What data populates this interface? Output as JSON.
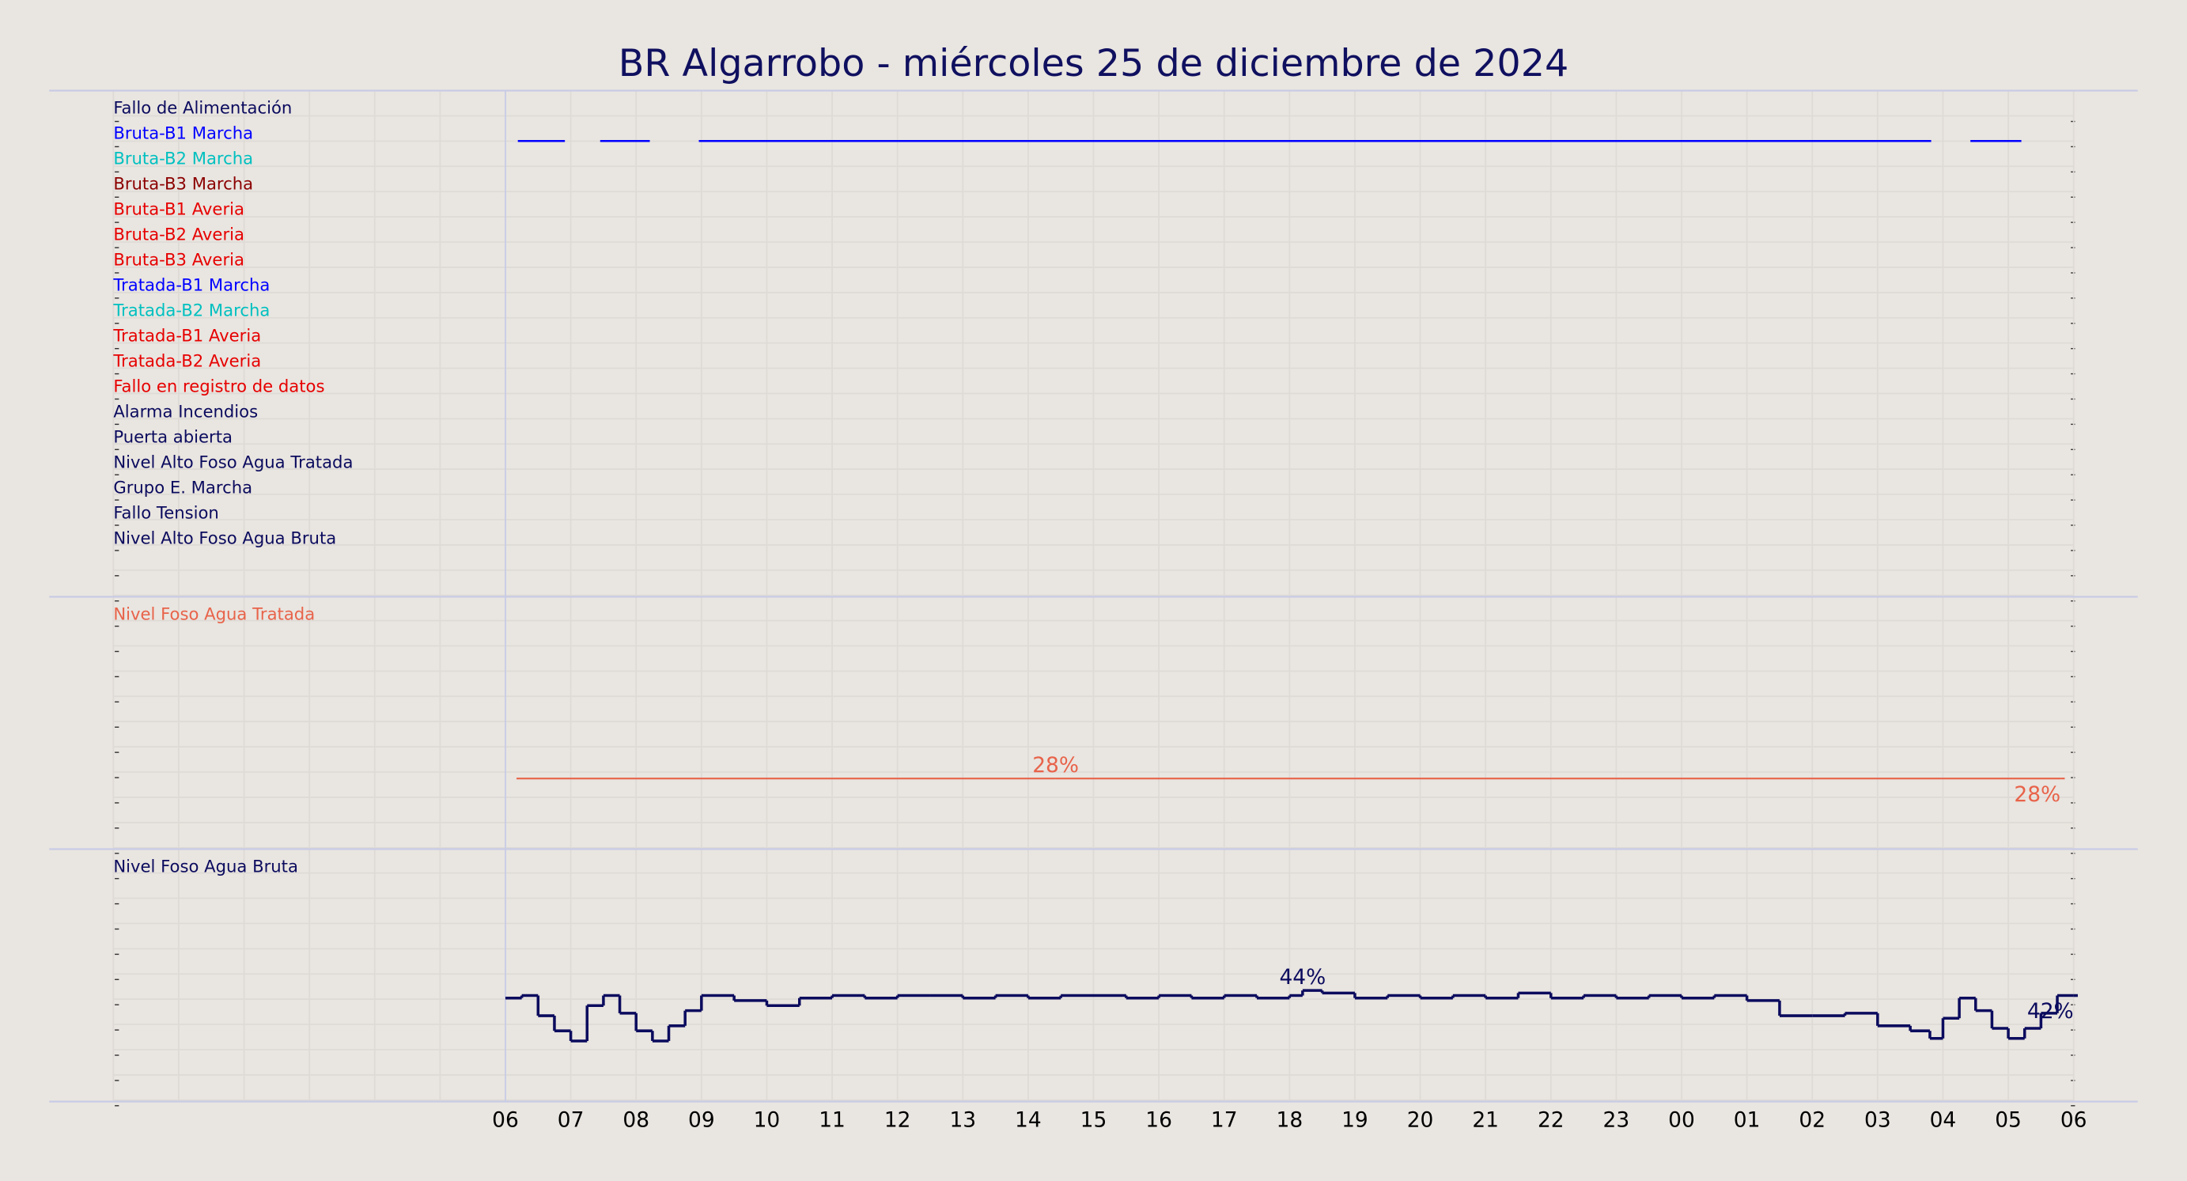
{
  "chart_data": [
    {
      "type": "timeline",
      "title": "BR Algarrobo   -   miércoles 25 de diciembre de 2024",
      "rows": [
        {
          "label": "Fallo de Alimentación",
          "color": "#0b0b5e",
          "segments": []
        },
        {
          "label": "Bruta-B1 Marcha",
          "color": "#0000ff",
          "segments": [
            [
              6.19,
              6.91
            ],
            [
              7.45,
              8.21
            ],
            [
              8.96,
              27.82
            ],
            [
              28.42,
              29.2
            ]
          ]
        },
        {
          "label": "Bruta-B2 Marcha",
          "color": "#00c0c0",
          "segments": []
        },
        {
          "label": "Bruta-B3 Marcha",
          "color": "#8b0000",
          "segments": []
        },
        {
          "label": "Bruta-B1 Averia",
          "color": "#e60000",
          "segments": []
        },
        {
          "label": "Bruta-B2 Averia",
          "color": "#e60000",
          "segments": []
        },
        {
          "label": "Bruta-B3 Averia",
          "color": "#e60000",
          "segments": []
        },
        {
          "label": "Tratada-B1 Marcha",
          "color": "#0000ff",
          "segments": []
        },
        {
          "label": "Tratada-B2 Marcha",
          "color": "#00c0c0",
          "segments": []
        },
        {
          "label": "Tratada-B1 Averia",
          "color": "#e60000",
          "segments": []
        },
        {
          "label": "Tratada-B2 Averia",
          "color": "#e60000",
          "segments": []
        },
        {
          "label": "Fallo en registro de datos",
          "color": "#e60000",
          "segments": []
        },
        {
          "label": "Alarma Incendios",
          "color": "#0b0b5e",
          "segments": []
        },
        {
          "label": "Puerta abierta",
          "color": "#0b0b5e",
          "segments": []
        },
        {
          "label": "Nivel Alto Foso Agua Tratada",
          "color": "#0b0b5e",
          "segments": []
        },
        {
          "label": "Grupo E. Marcha",
          "color": "#0b0b5e",
          "segments": []
        },
        {
          "label": "Fallo Tension",
          "color": "#0b0b5e",
          "segments": []
        },
        {
          "label": "Nivel Alto Foso Agua Bruta",
          "color": "#0b0b5e",
          "segments": []
        }
      ]
    },
    {
      "type": "step",
      "title": "Nivel Foso Agua Tratada",
      "color": "#e8634a",
      "ylim": [
        0,
        100
      ],
      "x": [
        6.17,
        14.42,
        29.8
      ],
      "values": [
        28,
        28,
        28
      ],
      "value_labels": [
        null,
        "28%",
        "28%"
      ]
    },
    {
      "type": "step",
      "title": "Nivel Foso Agua Bruta",
      "color": "#0b0b5e",
      "ylim": [
        0,
        100
      ],
      "xlim": [
        0,
        30
      ],
      "xticks": [
        {
          "value": 6,
          "label": "06"
        },
        {
          "value": 7,
          "label": "07"
        },
        {
          "value": 8,
          "label": "08"
        },
        {
          "value": 9,
          "label": "09"
        },
        10,
        11,
        12,
        13,
        14,
        15,
        16,
        17,
        18,
        19,
        20,
        21,
        22,
        23,
        {
          "value": 24,
          "label": "00"
        },
        {
          "value": 25,
          "label": "01"
        },
        {
          "value": 26,
          "label": "02"
        },
        {
          "value": 27,
          "label": "03"
        },
        {
          "value": 28,
          "label": "04"
        },
        {
          "value": 29,
          "label": "05"
        },
        {
          "value": 30,
          "label": "06"
        }
      ],
      "x": [
        6,
        6.25,
        6.5,
        6.75,
        7,
        7.25,
        7.5,
        7.75,
        8,
        8.25,
        8.5,
        8.75,
        9,
        9.5,
        10,
        10.5,
        11,
        11.5,
        12,
        12.5,
        13,
        13.5,
        14,
        14.5,
        15,
        15.5,
        16,
        16.5,
        17,
        17.5,
        18,
        18.2,
        18.5,
        19,
        19.5,
        20,
        20.5,
        21,
        21.5,
        22,
        22.5,
        23,
        23.5,
        24,
        24.5,
        25,
        25.5,
        26,
        26.5,
        27,
        27.5,
        27.8,
        28,
        28.25,
        28.5,
        28.75,
        29,
        29.25,
        29.5,
        29.75,
        30
      ],
      "values": [
        41,
        42,
        34,
        28,
        24,
        38,
        42,
        35,
        28,
        24,
        30,
        36,
        42,
        40,
        38,
        41,
        42,
        41,
        42,
        42,
        41,
        42,
        41,
        42,
        42,
        41,
        42,
        41,
        42,
        41,
        42,
        44,
        43,
        41,
        42,
        41,
        42,
        41,
        43,
        41,
        42,
        41,
        42,
        41,
        42,
        40,
        34,
        34,
        35,
        30,
        28,
        25,
        33,
        41,
        36,
        29,
        25,
        29,
        35,
        42,
        42
      ],
      "value_labels": [
        null,
        null,
        null,
        null,
        null,
        null,
        null,
        null,
        null,
        null,
        null,
        null,
        null,
        null,
        null,
        null,
        null,
        null,
        null,
        null,
        null,
        null,
        null,
        null,
        null,
        null,
        null,
        null,
        null,
        null,
        null,
        "44%",
        null,
        null,
        null,
        null,
        null,
        null,
        null,
        null,
        null,
        null,
        null,
        null,
        null,
        null,
        null,
        null,
        null,
        null,
        null,
        null,
        null,
        null,
        null,
        null,
        null,
        null,
        null,
        null,
        "42%"
      ]
    }
  ]
}
